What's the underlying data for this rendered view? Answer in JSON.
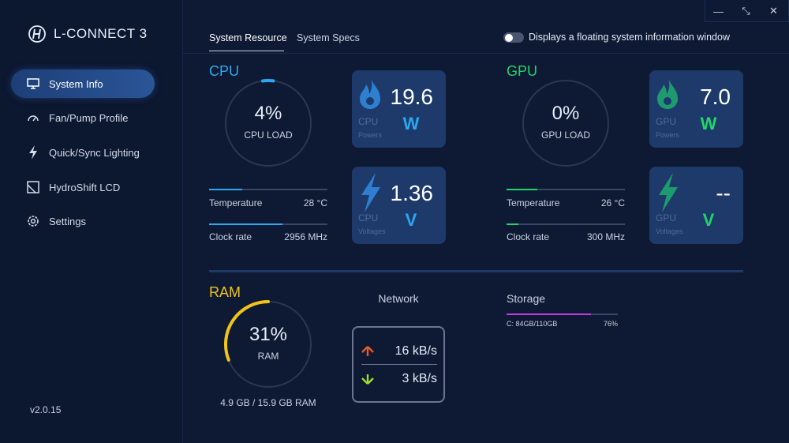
{
  "app": {
    "name": "L-CONNECT 3",
    "version": "v2.0.15"
  },
  "window": {
    "minimize": "—",
    "restore": "⤡",
    "close": "✕"
  },
  "sidebar": {
    "items": [
      {
        "label": "System Info",
        "icon": "monitor-icon",
        "active": true
      },
      {
        "label": "Fan/Pump Profile",
        "icon": "gauge-icon",
        "active": false
      },
      {
        "label": "Quick/Sync Lighting",
        "icon": "lightning-icon",
        "active": false
      },
      {
        "label": "HydroShift LCD",
        "icon": "lcd-icon",
        "active": false
      },
      {
        "label": "Settings",
        "icon": "gear-icon",
        "active": false
      }
    ]
  },
  "tabs": [
    {
      "label": "System Resource",
      "active": true
    },
    {
      "label": "System Specs",
      "active": false
    }
  ],
  "floating_toggle": {
    "label": "Displays a floating system information window",
    "on": false
  },
  "cpu": {
    "title": "CPU",
    "load_value": "4%",
    "load_fraction": 0.04,
    "load_label": "CPU LOAD",
    "temperature": {
      "label": "Temperature",
      "value": "28 °C",
      "fraction": 0.28
    },
    "clock": {
      "label": "Clock rate",
      "value": "2956 MHz",
      "fraction": 0.62
    },
    "power_card": {
      "value": "19.6",
      "unit": "W",
      "name": "CPU",
      "sub": "Powers"
    },
    "voltage_card": {
      "value": "1.36",
      "unit": "V",
      "name": "CPU",
      "sub": "Voltages"
    }
  },
  "gpu": {
    "title": "GPU",
    "load_value": "0%",
    "load_fraction": 0,
    "load_label": "GPU LOAD",
    "temperature": {
      "label": "Temperature",
      "value": "26 °C",
      "fraction": 0.26
    },
    "clock": {
      "label": "Clock rate",
      "value": "300 MHz",
      "fraction": 0.1
    },
    "power_card": {
      "value": "7.0",
      "unit": "W",
      "name": "GPU",
      "sub": "Powers"
    },
    "voltage_card": {
      "value": "--",
      "unit": "V",
      "name": "GPU",
      "sub": "Voltages"
    }
  },
  "ram": {
    "title": "RAM",
    "load_value": "31%",
    "load_fraction": 0.31,
    "load_label": "RAM",
    "usage": "4.9 GB / 15.9 GB RAM"
  },
  "network": {
    "title": "Network",
    "upload": "16 kB/s",
    "download": "3 kB/s"
  },
  "storage": {
    "title": "Storage",
    "drives": [
      {
        "label": "C: 84GB/110GB",
        "percent": "76%",
        "fraction": 0.76
      }
    ]
  },
  "colors": {
    "cpu": "#2aa9f0",
    "gpu": "#22d46a",
    "ram": "#f2c31a",
    "storage": "#c13be8",
    "gauge_track": "#2b3752",
    "card_icon_cpu": "#2f7fd0",
    "card_icon_gpu": "#1e9a70"
  }
}
